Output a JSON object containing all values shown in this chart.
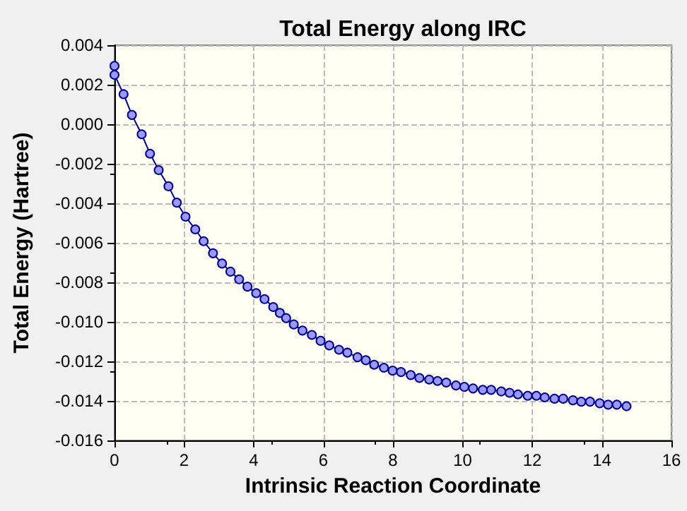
{
  "chart_data": {
    "type": "line",
    "title": "Total Energy along IRC",
    "xlabel": "Intrinsic Reaction Coordinate",
    "ylabel": "Total Energy (Hartree)",
    "x": [
      0,
      0,
      0.26,
      0.5,
      0.78,
      1.02,
      1.27,
      1.55,
      1.79,
      2.04,
      2.32,
      2.56,
      2.83,
      3.09,
      3.33,
      3.58,
      3.82,
      4.07,
      4.31,
      4.56,
      4.75,
      4.93,
      5.15,
      5.4,
      5.67,
      5.92,
      6.17,
      6.45,
      6.69,
      6.98,
      7.22,
      7.46,
      7.74,
      7.99,
      8.23,
      8.51,
      8.76,
      9.04,
      9.28,
      9.53,
      9.81,
      10.05,
      10.3,
      10.58,
      10.82,
      11.11,
      11.35,
      11.59,
      11.87,
      12.12,
      12.36,
      12.64,
      12.89,
      13.17,
      13.41,
      13.66,
      13.94,
      14.18,
      14.43,
      14.71
    ],
    "series": [
      {
        "color": "#00008b",
        "values": [
          0.00295,
          0.0025,
          0.00152,
          0.00047,
          -0.00051,
          -0.00149,
          -0.00232,
          -0.00314,
          -0.00397,
          -0.00468,
          -0.00532,
          -0.00592,
          -0.00653,
          -0.00705,
          -0.00746,
          -0.00785,
          -0.00822,
          -0.00855,
          -0.00885,
          -0.00925,
          -0.00955,
          -0.00981,
          -0.01013,
          -0.01044,
          -0.01066,
          -0.01096,
          -0.01119,
          -0.01141,
          -0.01156,
          -0.01179,
          -0.01194,
          -0.01217,
          -0.01232,
          -0.01247,
          -0.01254,
          -0.01269,
          -0.01284,
          -0.01292,
          -0.01299,
          -0.01307,
          -0.01322,
          -0.01329,
          -0.01337,
          -0.01344,
          -0.01344,
          -0.01352,
          -0.01359,
          -0.01367,
          -0.01374,
          -0.01374,
          -0.01382,
          -0.01389,
          -0.01389,
          -0.01397,
          -0.01404,
          -0.01404,
          -0.01412,
          -0.01419,
          -0.01419,
          -0.01427
        ]
      }
    ],
    "xlim": [
      0,
      16
    ],
    "xticks": [
      0,
      2,
      4,
      6,
      8,
      10,
      12,
      14,
      16
    ],
    "ylim": [
      -0.016,
      0.004
    ],
    "yticks": [
      {
        "value": -0.016,
        "label": "-0.016"
      },
      {
        "value": -0.014,
        "label": "-0.014"
      },
      {
        "value": -0.012,
        "label": "-0.012"
      },
      {
        "value": -0.01,
        "label": "-0.010"
      },
      {
        "value": -0.008,
        "label": "-0.008"
      },
      {
        "value": -0.006,
        "label": "-0.006"
      },
      {
        "value": -0.004,
        "label": "-0.004"
      },
      {
        "value": -0.002,
        "label": "-0.002"
      },
      {
        "value": 0,
        "label": "0.000"
      },
      {
        "value": 0.002,
        "label": "0.002"
      },
      {
        "value": 0.004,
        "label": "0.004"
      }
    ],
    "grid": true,
    "marker": "circle",
    "line_style": "solid"
  }
}
